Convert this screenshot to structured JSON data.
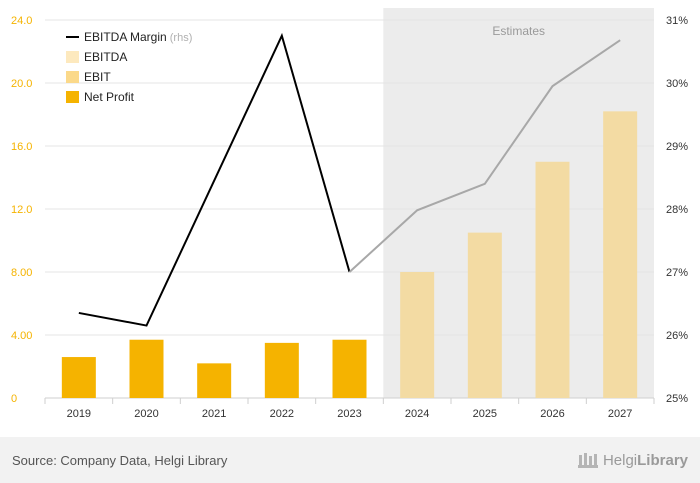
{
  "chart_data": {
    "type": "bar",
    "categories": [
      "2019",
      "2020",
      "2021",
      "2022",
      "2023",
      "2024",
      "2025",
      "2026",
      "2027"
    ],
    "series": [
      {
        "name": "EBITDA Margin",
        "name_suffix": "(rhs)",
        "type": "line",
        "axis": "right",
        "values": [
          26.35,
          26.15,
          null,
          30.75,
          27.0,
          27.98,
          28.4,
          29.95,
          30.68
        ]
      },
      {
        "name": "EBITDA",
        "type": "bar",
        "axis": "left",
        "values": [
          null,
          null,
          null,
          null,
          null,
          null,
          null,
          null,
          null
        ]
      },
      {
        "name": "EBIT",
        "type": "bar",
        "axis": "left",
        "values": [
          null,
          null,
          null,
          null,
          null,
          8.0,
          10.5,
          15.0,
          18.2
        ]
      },
      {
        "name": "Net Profit",
        "type": "bar",
        "axis": "left",
        "values": [
          2.6,
          3.7,
          2.2,
          3.5,
          3.7,
          null,
          null,
          null,
          null
        ]
      }
    ],
    "y_left": {
      "ylim": [
        0,
        24
      ],
      "ticks": [
        "0",
        "4.00",
        "8.00",
        "12.0",
        "16.0",
        "20.0",
        "24.0"
      ],
      "tick_values": [
        0,
        4,
        8,
        12,
        16,
        20,
        24
      ]
    },
    "y_right": {
      "ylim": [
        25,
        31
      ],
      "ticks": [
        "25%",
        "26%",
        "27%",
        "28%",
        "29%",
        "30%",
        "31%"
      ],
      "tick_values": [
        25,
        26,
        27,
        28,
        29,
        30,
        31
      ]
    },
    "estimates_label": "Estimates",
    "estimates_from": "2024",
    "grid": "horizontal",
    "legend_position": "top-left",
    "colors": {
      "net_profit": "#f5b300",
      "ebit_estimate": "#f3dba3",
      "ebit_legend": "#fbd98a",
      "ebitda_legend": "#fde9be",
      "margin_actual": "#000000",
      "margin_estimate": "#a8a8a8",
      "estimates_shade": "#ececec",
      "left_axis_text": "#f5b300",
      "right_axis_text": "#333333"
    }
  },
  "footer": {
    "source": "Source: Company Data, Helgi Library",
    "logo_prefix": "Helgi",
    "logo_suffix": "Library"
  }
}
